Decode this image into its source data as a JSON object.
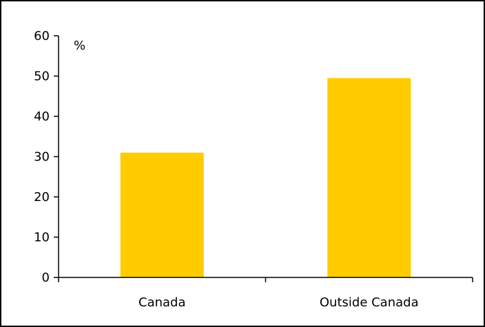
{
  "chart_data": {
    "type": "bar",
    "categories": [
      "Canada",
      "Outside Canada"
    ],
    "values": [
      31,
      49.5
    ],
    "title": "",
    "xlabel": "",
    "ylabel": "%",
    "ylim": [
      0,
      60
    ],
    "yticks": [
      0,
      10,
      20,
      30,
      40,
      50,
      60
    ],
    "grid": false,
    "legend": "none",
    "colors": {
      "bar": "#FFCC00",
      "axis": "#000000",
      "frame": "#000000",
      "background": "#FFFFFF"
    }
  }
}
